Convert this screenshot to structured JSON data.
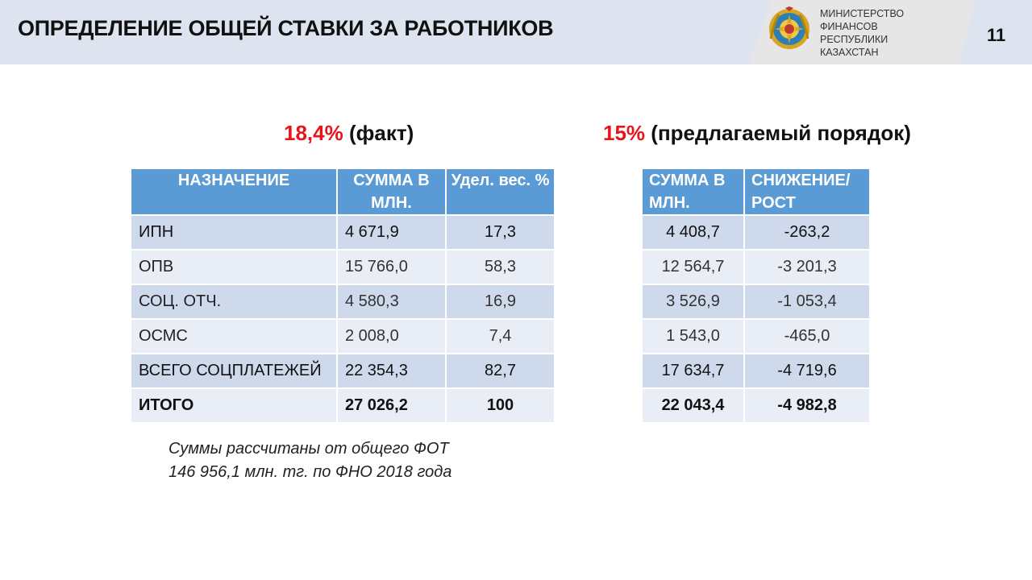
{
  "header": {
    "title": "ОПРЕДЕЛЕНИЕ ОБЩЕЙ СТАВКИ ЗА РАБОТНИКОВ",
    "ministry_lines": [
      "МИНИСТЕРСТВО",
      "ФИНАНСОВ",
      "РЕСПУБЛИКИ",
      "КАЗАХСТАН"
    ],
    "page_number": "11"
  },
  "left": {
    "rate": "18,4%",
    "rate_label": "(факт)",
    "columns": [
      "НАЗНАЧЕНИЕ",
      "СУММА В МЛН.",
      "Удел. вес. %"
    ],
    "rows": [
      [
        "ИПН",
        "4 671,9",
        "17,3"
      ],
      [
        "ОПВ",
        "15 766,0",
        "58,3"
      ],
      [
        "СОЦ. ОТЧ.",
        "4 580,3",
        "16,9"
      ],
      [
        "ОСМС",
        "2 008,0",
        "7,4"
      ],
      [
        "ВСЕГО СОЦПЛАТЕЖЕЙ",
        "22 354,3",
        "82,7"
      ],
      [
        "ИТОГО",
        "27 026,2",
        "100"
      ]
    ]
  },
  "right": {
    "rate": "15%",
    "rate_label": "(предлагаемый порядок)",
    "columns": [
      "СУММА В МЛН.",
      "СНИЖЕНИЕ/ РОСТ"
    ],
    "rows": [
      [
        "4 408,7",
        "-263,2"
      ],
      [
        "12 564,7",
        "-3 201,3"
      ],
      [
        "3 526,9",
        "-1 053,4"
      ],
      [
        "1 543,0",
        "-465,0"
      ],
      [
        "17 634,7",
        "-4 719,6"
      ],
      [
        "22 043,4",
        "-4 982,8"
      ]
    ]
  },
  "note": {
    "line1": "Суммы рассчитаны от общего ФОТ",
    "line2": "146 956,1 млн. тг. по ФНО 2018 года"
  },
  "colors": {
    "header_bg": "#dde4f0",
    "table_header": "#5b9bd5",
    "row_dark": "#cfd9ec",
    "row_light": "#e9edf6",
    "accent_red": "#e8141b"
  }
}
